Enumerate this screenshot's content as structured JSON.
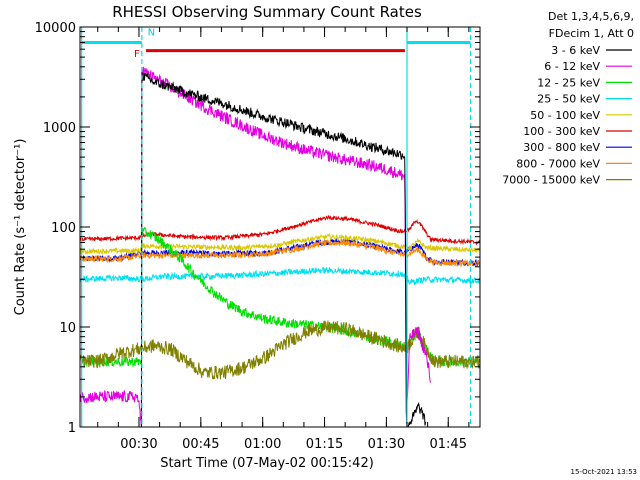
{
  "footer_timestamp": "15-Oct-2021 13:53",
  "chart_data": {
    "type": "line",
    "title": "RHESSI Observing Summary Count Rates",
    "xlabel": "Start Time (07-May-02 00:15:42)",
    "ylabel": "Count Rate (s⁻¹ detector⁻¹)",
    "x_unit": "minutes after 00:15:42",
    "xlim": [
      0,
      97
    ],
    "ylim": [
      1,
      10000
    ],
    "y_scale": "log",
    "grid": false,
    "legend_position": "right-outside",
    "x_ticks": [
      {
        "label": "00:30",
        "value": 14.3
      },
      {
        "label": "00:45",
        "value": 29.3
      },
      {
        "label": "01:00",
        "value": 44.3
      },
      {
        "label": "01:15",
        "value": 59.3
      },
      {
        "label": "01:30",
        "value": 74.3
      },
      {
        "label": "01:45",
        "value": 89.3
      }
    ],
    "y_ticks": [
      {
        "label": "1",
        "value": 1
      },
      {
        "label": "10",
        "value": 10
      },
      {
        "label": "100",
        "value": 100
      },
      {
        "label": "1000",
        "value": 1000
      },
      {
        "label": "10000",
        "value": 10000
      }
    ],
    "legend_header": [
      "Det 1,3,4,5,6,9,",
      "FDecim 1, Att 0"
    ],
    "attenuator_bar": {
      "x_start": 16.0,
      "x_end": 78.8,
      "y": 5800,
      "color": "#dd0000"
    },
    "annotations": [
      {
        "text": "F",
        "x": 13.8,
        "y": 5000,
        "color": "#dd0000"
      },
      {
        "text": "N",
        "x": 17.3,
        "y": 8200,
        "color": "#00c8e0"
      }
    ],
    "night_lines": [
      {
        "x": 0.4,
        "color": "#00e0f0",
        "style": "solid"
      },
      {
        "x": 15.0,
        "color": "#00e0f0",
        "style": "dashed"
      },
      {
        "x": 79.3,
        "color": "#00e0f0",
        "style": "solid"
      },
      {
        "x": 94.7,
        "color": "#00e0f0",
        "style": "dashed"
      }
    ],
    "night_bars": [
      {
        "x_start": 0.4,
        "x_end": 15.0,
        "y": 7000,
        "color": "#00e0f0"
      },
      {
        "x_start": 79.3,
        "x_end": 94.7,
        "y": 7000,
        "color": "#00e0f0"
      }
    ],
    "series": [
      {
        "name": "3 - 6 keV",
        "color": "#000000",
        "noise": 0.05,
        "points": [
          [
            14.9,
            1
          ],
          [
            15.0,
            3300
          ],
          [
            18,
            2800
          ],
          [
            22,
            2500
          ],
          [
            26,
            2200
          ],
          [
            30,
            1950
          ],
          [
            35,
            1700
          ],
          [
            40,
            1450
          ],
          [
            45,
            1250
          ],
          [
            50,
            1100
          ],
          [
            55,
            950
          ],
          [
            60,
            850
          ],
          [
            65,
            750
          ],
          [
            70,
            650
          ],
          [
            75,
            570
          ],
          [
            78.8,
            520
          ],
          [
            79.2,
            1
          ],
          [
            80.5,
            1.2
          ],
          [
            82,
            1.6
          ],
          [
            83,
            1.4
          ],
          [
            84,
            1
          ]
        ]
      },
      {
        "name": "6 - 12 keV",
        "color": "#e000e0",
        "noise": 0.06,
        "points": [
          [
            0,
            2
          ],
          [
            14,
            2
          ],
          [
            14.9,
            1
          ],
          [
            15.0,
            3700
          ],
          [
            18,
            3100
          ],
          [
            22,
            2500
          ],
          [
            26,
            2000
          ],
          [
            30,
            1600
          ],
          [
            35,
            1250
          ],
          [
            40,
            1000
          ],
          [
            45,
            800
          ],
          [
            50,
            680
          ],
          [
            55,
            580
          ],
          [
            60,
            520
          ],
          [
            65,
            460
          ],
          [
            70,
            420
          ],
          [
            75,
            370
          ],
          [
            78.8,
            320
          ],
          [
            79.1,
            1
          ],
          [
            80,
            8
          ],
          [
            82,
            9
          ],
          [
            84,
            5
          ],
          [
            85,
            3
          ]
        ]
      },
      {
        "name": "12 - 25 keV",
        "color": "#00e000",
        "noise": 0.05,
        "points": [
          [
            0,
            4.5
          ],
          [
            14.9,
            4.5
          ],
          [
            15.0,
            90
          ],
          [
            17,
            85
          ],
          [
            20,
            70
          ],
          [
            24,
            50
          ],
          [
            28,
            33
          ],
          [
            32,
            23
          ],
          [
            36,
            17
          ],
          [
            40,
            14
          ],
          [
            45,
            12
          ],
          [
            50,
            11
          ],
          [
            55,
            10.5
          ],
          [
            60,
            10
          ],
          [
            65,
            9
          ],
          [
            70,
            8
          ],
          [
            75,
            7
          ],
          [
            78,
            6.5
          ],
          [
            79.2,
            6
          ],
          [
            80.5,
            7.5
          ],
          [
            82,
            8.5
          ],
          [
            84,
            6
          ],
          [
            86,
            4.5
          ],
          [
            97,
            4.5
          ]
        ]
      },
      {
        "name": "25 - 50 keV",
        "color": "#00e0f0",
        "noise": 0.03,
        "points": [
          [
            0,
            30
          ],
          [
            10,
            31
          ],
          [
            15,
            30
          ],
          [
            20,
            32
          ],
          [
            30,
            32
          ],
          [
            40,
            33
          ],
          [
            50,
            35
          ],
          [
            58,
            37
          ],
          [
            65,
            36
          ],
          [
            72,
            35
          ],
          [
            78,
            34
          ],
          [
            80,
            28
          ],
          [
            84,
            30
          ],
          [
            97,
            29
          ]
        ]
      },
      {
        "name": "50 - 100 keV",
        "color": "#d8c800",
        "noise": 0.025,
        "points": [
          [
            0,
            57
          ],
          [
            14.5,
            58
          ],
          [
            15,
            65
          ],
          [
            20,
            64
          ],
          [
            30,
            63
          ],
          [
            40,
            62
          ],
          [
            48,
            66
          ],
          [
            55,
            75
          ],
          [
            60,
            80
          ],
          [
            65,
            78
          ],
          [
            72,
            72
          ],
          [
            78,
            64
          ],
          [
            80,
            62
          ],
          [
            82,
            72
          ],
          [
            84,
            62
          ],
          [
            90,
            60
          ],
          [
            97,
            58
          ]
        ]
      },
      {
        "name": "100 - 300 keV",
        "color": "#dd0000",
        "noise": 0.02,
        "points": [
          [
            0,
            75
          ],
          [
            14,
            78
          ],
          [
            17,
            85
          ],
          [
            25,
            80
          ],
          [
            35,
            78
          ],
          [
            45,
            85
          ],
          [
            55,
            110
          ],
          [
            60,
            125
          ],
          [
            65,
            120
          ],
          [
            72,
            105
          ],
          [
            78,
            90
          ],
          [
            80,
            95
          ],
          [
            81.5,
            118
          ],
          [
            83,
            100
          ],
          [
            85,
            75
          ],
          [
            97,
            70
          ]
        ]
      },
      {
        "name": "300 - 800 keV",
        "color": "#0000e0",
        "noise": 0.03,
        "points": [
          [
            0,
            48
          ],
          [
            10,
            49
          ],
          [
            15,
            55
          ],
          [
            25,
            55
          ],
          [
            35,
            54
          ],
          [
            45,
            55
          ],
          [
            52,
            62
          ],
          [
            58,
            70
          ],
          [
            64,
            72
          ],
          [
            70,
            66
          ],
          [
            76,
            58
          ],
          [
            79,
            55
          ],
          [
            80,
            60
          ],
          [
            82,
            66
          ],
          [
            84,
            50
          ],
          [
            86,
            45
          ],
          [
            97,
            44
          ]
        ]
      },
      {
        "name": "800 - 7000 keV",
        "color": "#ff8800",
        "noise": 0.03,
        "points": [
          [
            0,
            48
          ],
          [
            10,
            48
          ],
          [
            15,
            52
          ],
          [
            25,
            52
          ],
          [
            35,
            52
          ],
          [
            45,
            54
          ],
          [
            52,
            60
          ],
          [
            58,
            68
          ],
          [
            64,
            70
          ],
          [
            70,
            64
          ],
          [
            76,
            56
          ],
          [
            79,
            52
          ],
          [
            80,
            55
          ],
          [
            82,
            60
          ],
          [
            84,
            48
          ],
          [
            86,
            44
          ],
          [
            97,
            43
          ]
        ]
      },
      {
        "name": "7000 - 15000 keV",
        "color": "#808000",
        "noise": 0.07,
        "points": [
          [
            0,
            4.5
          ],
          [
            5,
            4.6
          ],
          [
            10,
            5.5
          ],
          [
            14,
            6
          ],
          [
            18,
            6.5
          ],
          [
            22,
            6
          ],
          [
            26,
            4.5
          ],
          [
            30,
            3.5
          ],
          [
            35,
            3.5
          ],
          [
            40,
            4
          ],
          [
            45,
            5
          ],
          [
            50,
            7
          ],
          [
            55,
            9
          ],
          [
            60,
            10
          ],
          [
            65,
            9.5
          ],
          [
            70,
            8
          ],
          [
            75,
            7
          ],
          [
            79,
            6
          ],
          [
            81,
            8
          ],
          [
            82,
            9
          ],
          [
            84,
            6
          ],
          [
            86,
            4.5
          ],
          [
            97,
            4.5
          ]
        ]
      }
    ]
  }
}
